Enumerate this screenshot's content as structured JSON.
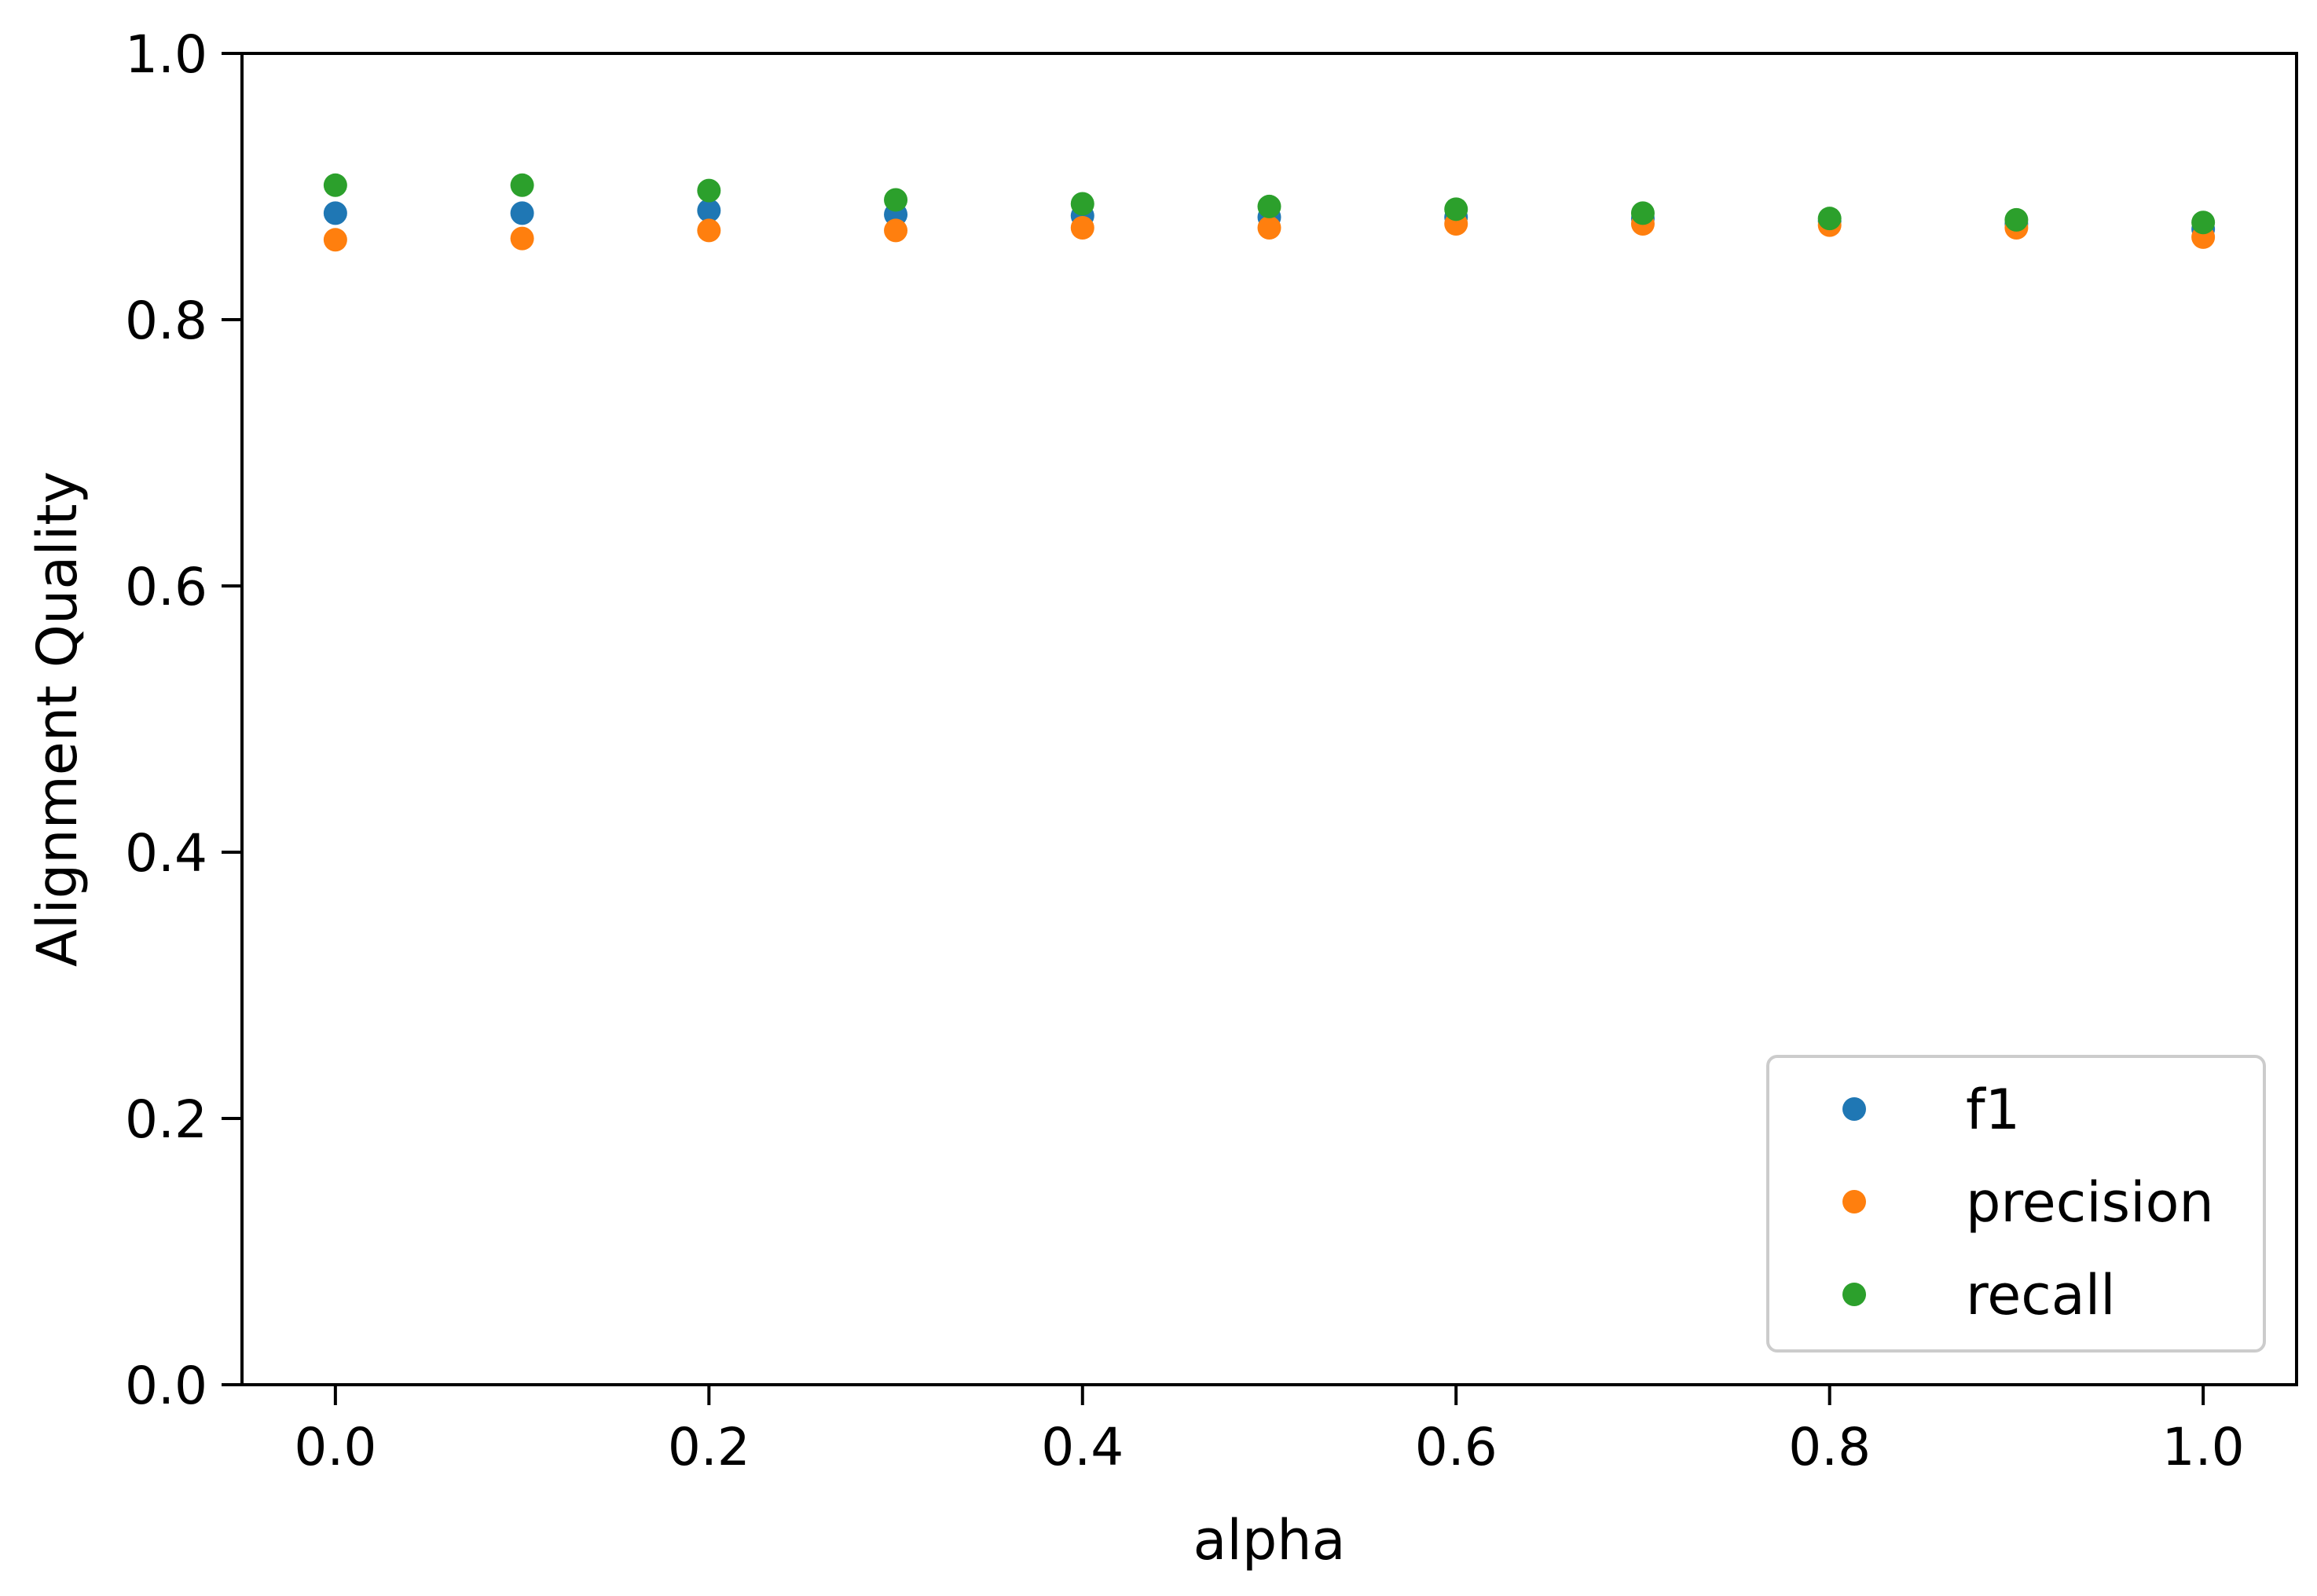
{
  "chart_data": {
    "type": "scatter",
    "xlabel": "alpha",
    "ylabel": "Alignment Quality",
    "xlim": [
      -0.05,
      1.05
    ],
    "ylim": [
      0.0,
      1.0
    ],
    "xticks": [
      "0.0",
      "0.2",
      "0.4",
      "0.6",
      "0.8",
      "1.0"
    ],
    "yticks": [
      "0.0",
      "0.2",
      "0.4",
      "0.6",
      "0.8",
      "1.0"
    ],
    "grid": false,
    "legend": "lower-right",
    "x": [
      0.0,
      0.1,
      0.2,
      0.3,
      0.4,
      0.5,
      0.6,
      0.7,
      0.8,
      0.9,
      1.0
    ],
    "series": [
      {
        "name": "f1",
        "color": "#1f77b4",
        "values": [
          0.88,
          0.88,
          0.882,
          0.879,
          0.878,
          0.877,
          0.877,
          0.876,
          0.874,
          0.872,
          0.868
        ]
      },
      {
        "name": "precision",
        "color": "#ff7f0e",
        "values": [
          0.86,
          0.861,
          0.867,
          0.867,
          0.869,
          0.869,
          0.872,
          0.872,
          0.871,
          0.869,
          0.862
        ]
      },
      {
        "name": "recall",
        "color": "#2ca02c",
        "values": [
          0.901,
          0.901,
          0.897,
          0.89,
          0.887,
          0.885,
          0.883,
          0.88,
          0.876,
          0.875,
          0.873
        ]
      }
    ]
  }
}
